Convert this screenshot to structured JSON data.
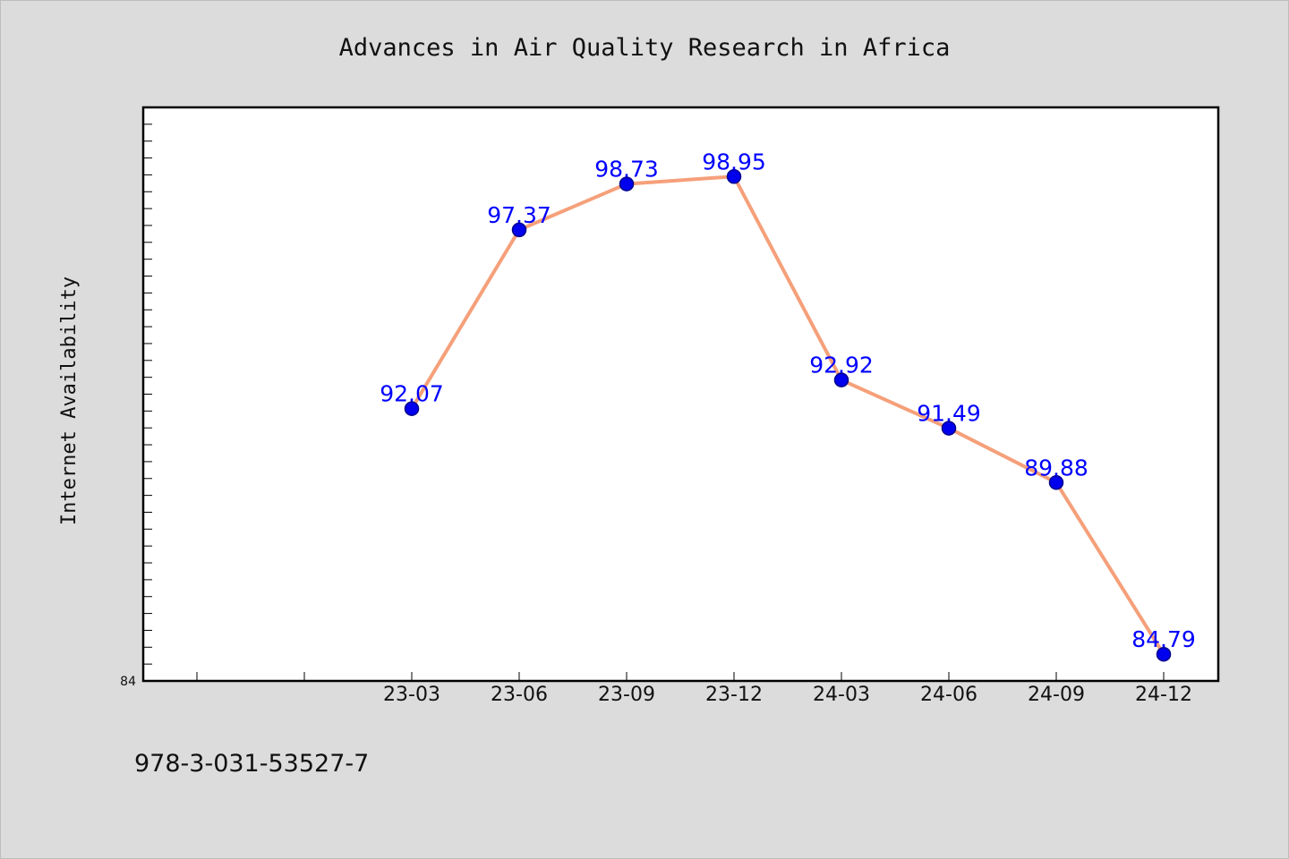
{
  "chart_data": {
    "type": "line",
    "title": "Advances in Air Quality Research in Africa",
    "xlabel": "",
    "ylabel": "Internet Availability",
    "categories": [
      "23-03",
      "23-06",
      "23-09",
      "23-12",
      "24-03",
      "24-06",
      "24-09",
      "24-12"
    ],
    "series": [
      {
        "values": [
          92.07,
          97.37,
          98.73,
          98.95,
          92.92,
          91.49,
          89.88,
          84.79
        ]
      }
    ],
    "data_labels": [
      "92.07",
      "97.37",
      "98.73",
      "98.95",
      "92.92",
      "91.49",
      "89.88",
      "84.79"
    ],
    "ylim": [
      84,
      101
    ],
    "y_tick_labels": [
      "84"
    ],
    "grid": false,
    "legend": "none",
    "colors": {
      "line": "#f5a07a",
      "marker": "#0000ee",
      "marker_edge": "#00008b",
      "data_label": "#0000ff",
      "plot_background": "#ffffff",
      "page_background": "#dcdcdc"
    }
  },
  "footer": {
    "isbn": "978-3-031-53527-7"
  }
}
